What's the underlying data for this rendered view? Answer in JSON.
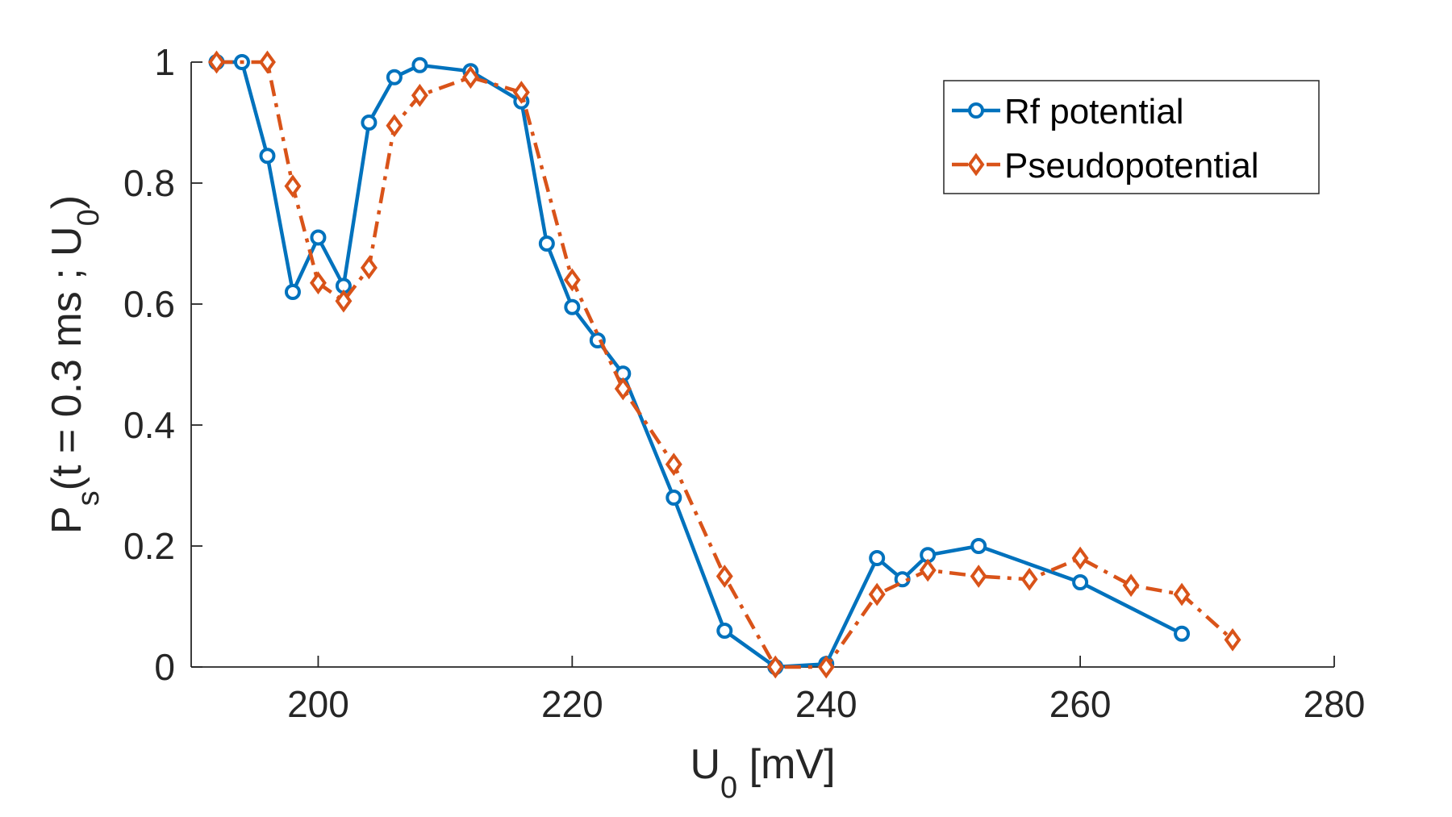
{
  "chart_data": {
    "type": "line",
    "title": "",
    "xlabel": {
      "main": "U",
      "sub": "0",
      "unit": " [mV]"
    },
    "ylabel": {
      "p": "P",
      "p_sub": "s",
      "body": "(t = 0.3 ms ; U",
      "u_sub": "0",
      "close": ")"
    },
    "xlim": [
      190,
      280
    ],
    "ylim": [
      0,
      1
    ],
    "xticks": [
      200,
      220,
      240,
      260,
      280
    ],
    "xtick_labels": [
      "200",
      "220",
      "240",
      "260",
      "280"
    ],
    "yticks": [
      0,
      0.2,
      0.4,
      0.6,
      0.8,
      1
    ],
    "ytick_labels": [
      "0",
      "0.2",
      "0.4",
      "0.6",
      "0.8",
      "1"
    ],
    "grid": false,
    "legend_position": "top-right",
    "series": [
      {
        "name": "Rf potential",
        "color": "#0072BD",
        "line_style": "solid",
        "marker": "circle",
        "x": [
          192,
          194,
          196,
          198,
          200,
          202,
          204,
          206,
          208,
          212,
          216,
          218,
          220,
          222,
          224,
          228,
          232,
          236,
          240,
          244,
          246,
          248,
          252,
          260,
          268
        ],
        "y": [
          1.0,
          1.0,
          0.845,
          0.62,
          0.71,
          0.63,
          0.9,
          0.975,
          0.995,
          0.985,
          0.935,
          0.7,
          0.595,
          0.54,
          0.485,
          0.28,
          0.06,
          0.0,
          0.005,
          0.18,
          0.145,
          0.185,
          0.2,
          0.14,
          0.055
        ]
      },
      {
        "name": "Pseudopotential",
        "color": "#D95319",
        "line_style": "dashdot",
        "marker": "diamond",
        "x": [
          192,
          196,
          198,
          200,
          202,
          204,
          206,
          208,
          212,
          216,
          220,
          224,
          228,
          232,
          236,
          240,
          244,
          248,
          252,
          256,
          260,
          264,
          268,
          272
        ],
        "y": [
          1.0,
          1.0,
          0.795,
          0.635,
          0.605,
          0.66,
          0.895,
          0.945,
          0.975,
          0.95,
          0.64,
          0.46,
          0.335,
          0.15,
          0.0,
          0.0,
          0.12,
          0.16,
          0.15,
          0.145,
          0.18,
          0.135,
          0.12,
          0.045
        ]
      }
    ]
  }
}
